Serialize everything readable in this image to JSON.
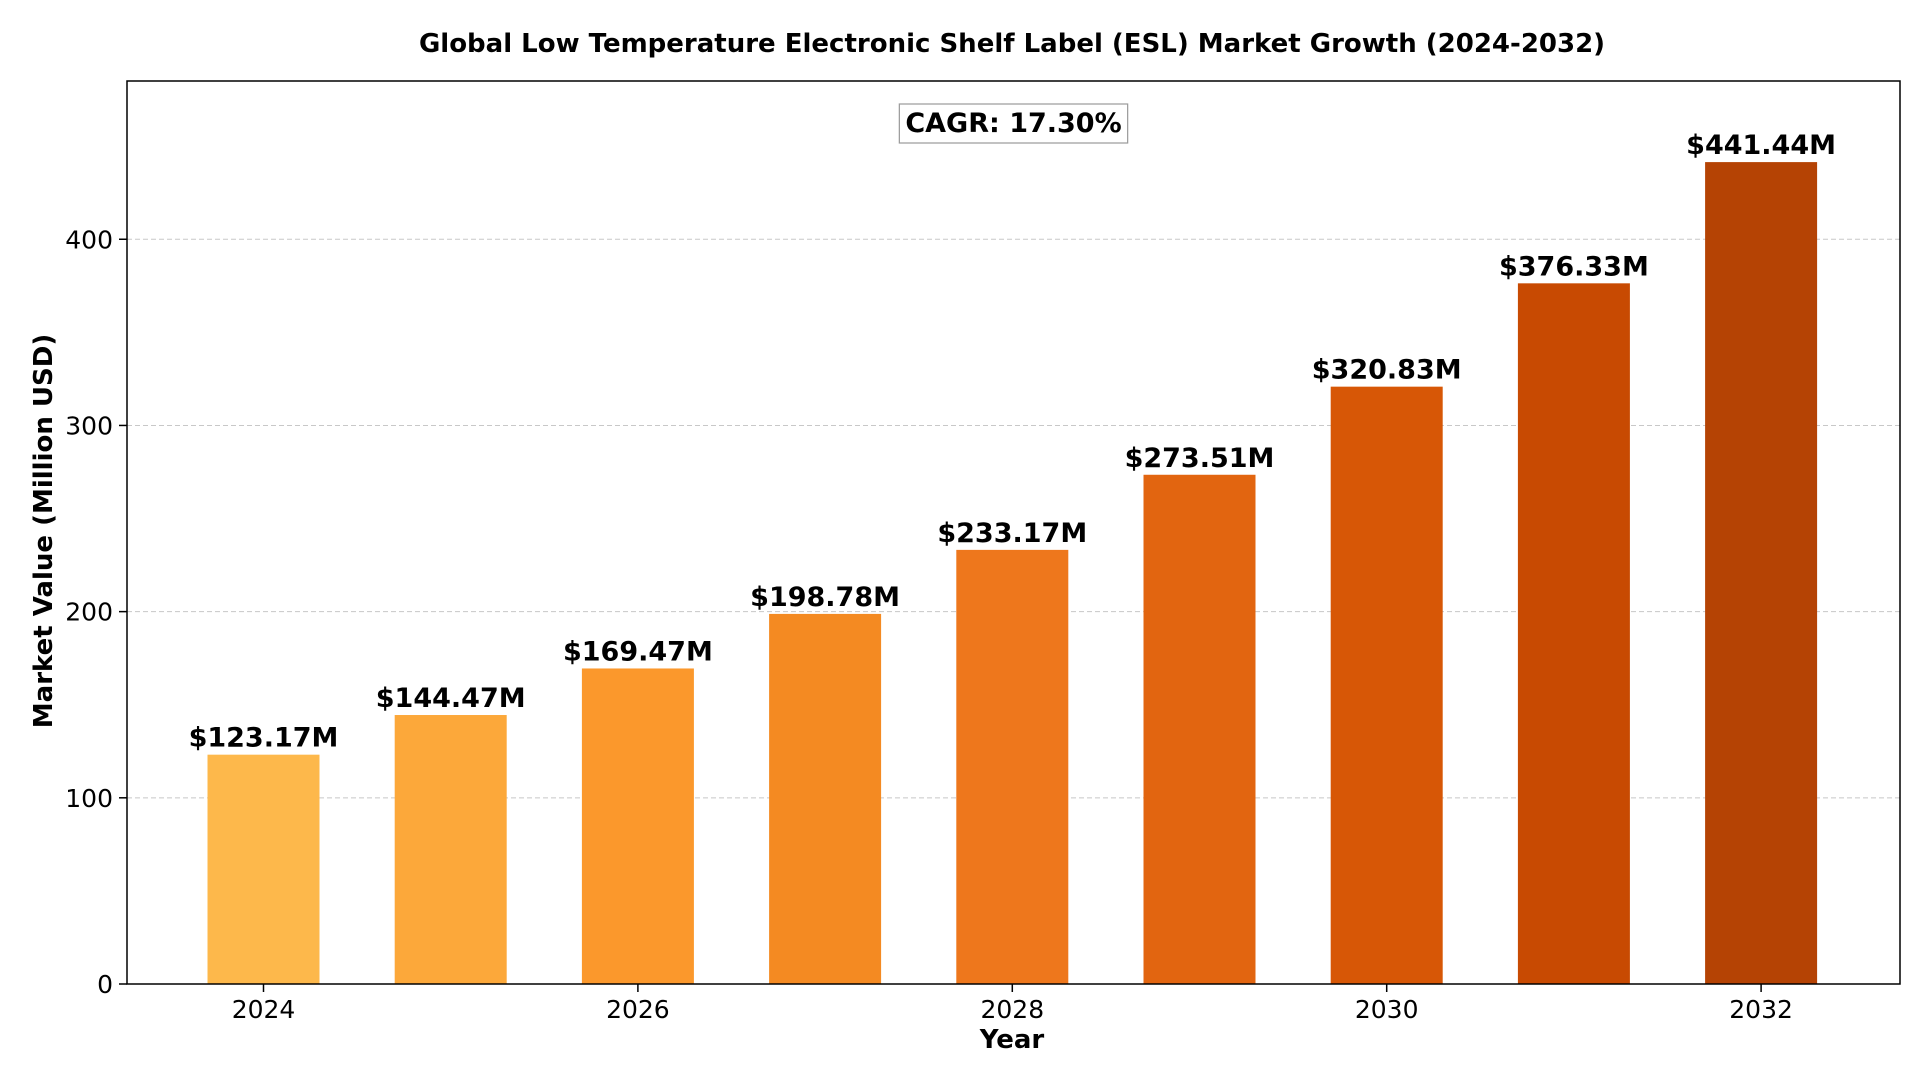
{
  "chart_data": {
    "type": "bar",
    "title": "Global Low Temperature Electronic Shelf Label (ESL) Market Growth (2024-2032)",
    "xlabel": "Year",
    "ylabel": "Market Value (Million USD)",
    "categories": [
      "2024",
      "2025",
      "2026",
      "2027",
      "2028",
      "2029",
      "2030",
      "2031",
      "2032"
    ],
    "x_tick_labels": [
      "2024",
      "2026",
      "2028",
      "2030",
      "2032"
    ],
    "values": [
      123.17,
      144.47,
      169.47,
      198.78,
      233.17,
      273.51,
      320.83,
      376.33,
      441.44
    ],
    "data_labels": [
      "$123.17M",
      "$144.47M",
      "$169.47M",
      "$198.78M",
      "$233.17M",
      "$273.51M",
      "$320.83M",
      "$376.33M",
      "$441.44M"
    ],
    "colors": [
      "#fdb84b",
      "#fca83a",
      "#fb982c",
      "#f48a22",
      "#ee771c",
      "#e26510",
      "#d75706",
      "#c84a02",
      "#b54304"
    ],
    "ylim": [
      0,
      485
    ],
    "y_ticks": [
      0,
      100,
      200,
      300,
      400
    ],
    "grid": "y-dashed",
    "annotation": "CAGR: 17.30%"
  }
}
